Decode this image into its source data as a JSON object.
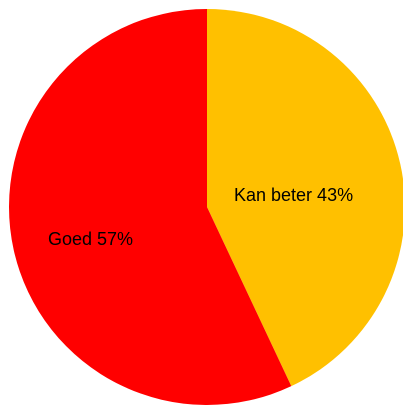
{
  "chart_data": {
    "type": "pie",
    "categories": [
      "Kan beter",
      "Goed"
    ],
    "values": [
      43,
      57
    ],
    "colors": [
      "#ffc000",
      "#ff0000"
    ],
    "data_labels": [
      "Kan beter 43%",
      "Goed 57%"
    ],
    "start_angle_deg": 0,
    "direction": "clockwise"
  }
}
